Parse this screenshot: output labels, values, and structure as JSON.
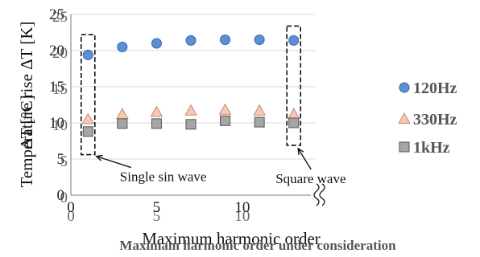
{
  "chart_data": {
    "type": "scatter",
    "title": "",
    "xlabel": "Maximum harmonic order",
    "xlabel_overlay": "Maximam harmonic order  under consideration",
    "ylabel": "Temperature rise ΔT [K]",
    "ylabel_overlay": "ΔT [°C]",
    "xlim": [
      0,
      14
    ],
    "ylim": [
      0,
      25
    ],
    "x_ticks": [
      "0",
      "5",
      "10"
    ],
    "x_ticks_overlay": [
      "0",
      "5",
      "10"
    ],
    "y_ticks": [
      "0",
      "5",
      "10",
      "15",
      "20",
      "25"
    ],
    "y_ticks_overlay": [
      "0",
      "5",
      "10",
      "15",
      "20",
      "25"
    ],
    "grid": "horizontal",
    "legend_position": "right",
    "x": [
      1,
      3,
      5,
      7,
      9,
      11,
      13
    ],
    "series": [
      {
        "name": "120Hz",
        "marker": "circle",
        "color": "#5b8fd6",
        "values": [
          19.4,
          20.5,
          21.0,
          21.4,
          21.5,
          21.5,
          21.4
        ]
      },
      {
        "name": "330Hz",
        "marker": "triangle",
        "color": "#f7c8b4",
        "values": [
          10.5,
          11.2,
          11.5,
          11.7,
          11.8,
          11.7,
          11.2
        ]
      },
      {
        "name": "1kHz",
        "marker": "square",
        "color": "#a6a6a6",
        "values": [
          8.8,
          9.9,
          9.9,
          9.8,
          10.3,
          10.1,
          10.0
        ]
      }
    ],
    "annotations": [
      {
        "text": "Single sin wave",
        "x_range": [
          0.6,
          1.4
        ],
        "y_range": [
          5.6,
          22.2
        ]
      },
      {
        "text": "Square wave",
        "x_range": [
          12.6,
          13.4
        ],
        "y_range": [
          6.9,
          23.4
        ]
      }
    ],
    "axis_break": true
  }
}
